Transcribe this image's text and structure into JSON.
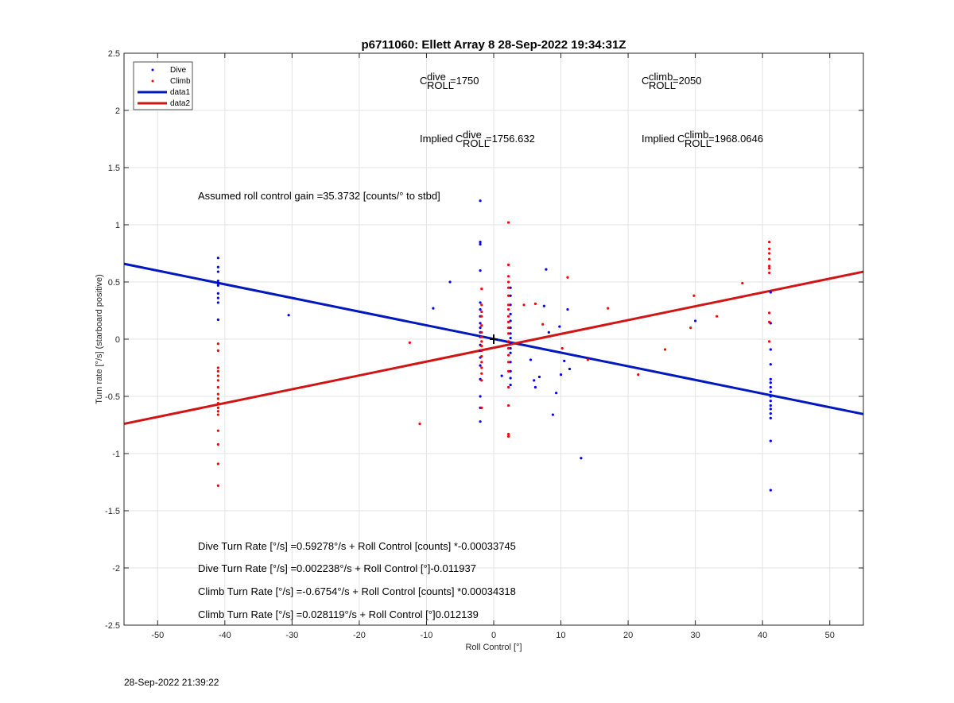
{
  "chart_data": {
    "type": "scatter",
    "title": "p6711060: Ellett Array 8 28-Sep-2022 19:34:31Z",
    "xlabel": "Roll Control [°]",
    "ylabel": "Turn rate [°/s] (starboard positive)",
    "xlim": [
      -55,
      55
    ],
    "ylim": [
      -2.5,
      2.5
    ],
    "x_ticks": [
      -50,
      -40,
      -30,
      -20,
      -10,
      0,
      10,
      20,
      30,
      40,
      50
    ],
    "y_ticks": [
      2.5,
      2,
      1.5,
      1,
      0.5,
      0,
      -0.5,
      -1,
      -1.5,
      -2,
      -2.5
    ],
    "grid": true,
    "legend": {
      "placement": "top-left",
      "entries": [
        {
          "label": "Dive",
          "kind": "marker",
          "color": "#0000ff"
        },
        {
          "label": "Climb",
          "kind": "marker",
          "color": "#ff0000"
        },
        {
          "label": "data1",
          "kind": "line",
          "color": "#0018bd"
        },
        {
          "label": "data2",
          "kind": "line",
          "color": "#d01515"
        }
      ]
    },
    "series": [
      {
        "name": "Dive",
        "kind": "points",
        "color": "#0000ff",
        "points": [
          [
            -41,
            0.71
          ],
          [
            -41,
            0.63
          ],
          [
            -41,
            0.59
          ],
          [
            -41,
            0.51
          ],
          [
            -41,
            0.49
          ],
          [
            -41,
            0.47
          ],
          [
            -41,
            0.4
          ],
          [
            -41,
            0.36
          ],
          [
            -41,
            0.32
          ],
          [
            -41,
            0.17
          ],
          [
            -30.5,
            0.21
          ],
          [
            -9,
            0.27
          ],
          [
            -6.5,
            0.5
          ],
          [
            -2,
            1.21
          ],
          [
            -2,
            0.85
          ],
          [
            -2,
            0.83
          ],
          [
            -2,
            0.6
          ],
          [
            -2,
            0.32
          ],
          [
            -2,
            0.26
          ],
          [
            -2,
            0.2
          ],
          [
            -2,
            0.14
          ],
          [
            -2,
            0.1
          ],
          [
            -2,
            0.06
          ],
          [
            -2,
            0.02
          ],
          [
            -2,
            -0.05
          ],
          [
            -2,
            -0.1
          ],
          [
            -2,
            -0.16
          ],
          [
            -2,
            -0.23
          ],
          [
            -2,
            -0.35
          ],
          [
            -2,
            -0.5
          ],
          [
            -2,
            -0.6
          ],
          [
            -2,
            -0.72
          ],
          [
            2.5,
            0.45
          ],
          [
            2.5,
            0.38
          ],
          [
            2.5,
            0.3
          ],
          [
            2.5,
            0.22
          ],
          [
            2.5,
            0.16
          ],
          [
            2.5,
            0.1
          ],
          [
            2.5,
            0.05
          ],
          [
            2.5,
            0.01
          ],
          [
            2.5,
            -0.03
          ],
          [
            2.5,
            -0.08
          ],
          [
            2.5,
            -0.12
          ],
          [
            2.5,
            -0.2
          ],
          [
            2.5,
            -0.28
          ],
          [
            2.5,
            -0.34
          ],
          [
            2.5,
            -0.4
          ],
          [
            1.2,
            -0.32
          ],
          [
            5.5,
            -0.18
          ],
          [
            6,
            -0.36
          ],
          [
            6.2,
            -0.42
          ],
          [
            6.8,
            -0.33
          ],
          [
            7.5,
            0.29
          ],
          [
            7.8,
            0.61
          ],
          [
            8.2,
            0.06
          ],
          [
            8.8,
            -0.66
          ],
          [
            9.3,
            -0.47
          ],
          [
            9.8,
            0.11
          ],
          [
            10,
            -0.31
          ],
          [
            10.5,
            -0.19
          ],
          [
            11,
            0.26
          ],
          [
            11.3,
            -0.26
          ],
          [
            13,
            -1.04
          ],
          [
            30,
            0.16
          ],
          [
            41.2,
            0.41
          ],
          [
            41.2,
            0.14
          ],
          [
            41.2,
            -0.09
          ],
          [
            41.2,
            -0.22
          ],
          [
            41.2,
            -0.35
          ],
          [
            41.2,
            -0.38
          ],
          [
            41.2,
            -0.42
          ],
          [
            41.2,
            -0.46
          ],
          [
            41.2,
            -0.5
          ],
          [
            41.2,
            -0.54
          ],
          [
            41.2,
            -0.58
          ],
          [
            41.2,
            -0.61
          ],
          [
            41.2,
            -0.65
          ],
          [
            41.2,
            -0.69
          ],
          [
            41.2,
            -0.89
          ],
          [
            41.2,
            -1.32
          ]
        ]
      },
      {
        "name": "Climb",
        "kind": "points",
        "color": "#ff0000",
        "points": [
          [
            -41,
            -0.04
          ],
          [
            -41,
            -0.1
          ],
          [
            -41,
            -0.25
          ],
          [
            -41,
            -0.28
          ],
          [
            -41,
            -0.32
          ],
          [
            -41,
            -0.36
          ],
          [
            -41,
            -0.42
          ],
          [
            -41,
            -0.48
          ],
          [
            -41,
            -0.52
          ],
          [
            -41,
            -0.56
          ],
          [
            -41,
            -0.6
          ],
          [
            -41,
            -0.63
          ],
          [
            -41,
            -0.66
          ],
          [
            -41,
            -0.8
          ],
          [
            -41,
            -0.92
          ],
          [
            -41,
            -1.09
          ],
          [
            -41,
            -1.28
          ],
          [
            -12.5,
            -0.03
          ],
          [
            -11,
            -0.74
          ],
          [
            -1.8,
            0.44
          ],
          [
            -1.8,
            0.3
          ],
          [
            -1.8,
            0.24
          ],
          [
            -1.8,
            0.2
          ],
          [
            -1.8,
            0.12
          ],
          [
            -1.8,
            0.06
          ],
          [
            -1.8,
            0.02
          ],
          [
            -1.8,
            -0.02
          ],
          [
            -1.8,
            -0.06
          ],
          [
            -1.8,
            -0.1
          ],
          [
            -1.8,
            -0.15
          ],
          [
            -1.8,
            -0.2
          ],
          [
            -1.8,
            -0.25
          ],
          [
            -1.8,
            -0.3
          ],
          [
            -1.8,
            -0.36
          ],
          [
            -1.8,
            -0.6
          ],
          [
            2.2,
            1.02
          ],
          [
            2.2,
            0.65
          ],
          [
            2.2,
            0.55
          ],
          [
            2.2,
            0.5
          ],
          [
            2.2,
            0.45
          ],
          [
            2.2,
            0.38
          ],
          [
            2.2,
            0.3
          ],
          [
            2.2,
            0.26
          ],
          [
            2.2,
            0.2
          ],
          [
            2.2,
            0.15
          ],
          [
            2.2,
            0.1
          ],
          [
            2.2,
            0.05
          ],
          [
            2.2,
            -0.02
          ],
          [
            2.2,
            -0.08
          ],
          [
            2.2,
            -0.14
          ],
          [
            2.2,
            -0.2
          ],
          [
            2.2,
            -0.28
          ],
          [
            2.2,
            -0.42
          ],
          [
            2.2,
            -0.58
          ],
          [
            2.2,
            -0.83
          ],
          [
            2.2,
            -0.85
          ],
          [
            4.5,
            0.3
          ],
          [
            6.2,
            0.31
          ],
          [
            7.3,
            0.13
          ],
          [
            10.2,
            -0.08
          ],
          [
            11,
            0.54
          ],
          [
            14,
            -0.18
          ],
          [
            17,
            0.27
          ],
          [
            21.5,
            -0.31
          ],
          [
            25.5,
            -0.09
          ],
          [
            29.3,
            0.1
          ],
          [
            29.8,
            0.38
          ],
          [
            33.2,
            0.2
          ],
          [
            37,
            0.49
          ],
          [
            41,
            0.85
          ],
          [
            41,
            0.79
          ],
          [
            41,
            0.75
          ],
          [
            41,
            0.7
          ],
          [
            41,
            0.64
          ],
          [
            41,
            0.62
          ],
          [
            41,
            0.58
          ],
          [
            41,
            0.23
          ],
          [
            41,
            0.15
          ],
          [
            41,
            -0.02
          ]
        ]
      },
      {
        "name": "data1",
        "kind": "line",
        "color": "#0018bd",
        "x": [
          -55,
          55
        ],
        "y": [
          0.659,
          -0.655
        ]
      },
      {
        "name": "data2",
        "kind": "line",
        "color": "#d01515",
        "x": [
          -55,
          55
        ],
        "y": [
          -0.74,
          0.59
        ]
      }
    ],
    "annotations": {
      "c_dive_value": "=1750",
      "c_climb_value": "=2050",
      "implied_prefix": "Implied ",
      "implied_dive_value": "=1756.632",
      "implied_climb_value": "=1968.0646",
      "c_letter": "C",
      "roll_sub": "ROLL",
      "dive_sup": "dive",
      "climb_sup": "climb",
      "gain_text": "Assumed roll control gain =35.3732 [counts/° to stbd]",
      "fit_lines": [
        "Dive Turn Rate [°/s] =0.59278°/s + Roll Control [counts] *-0.00033745",
        "Dive Turn Rate [°/s] =0.002238°/s + Roll Control [°]-0.011937",
        "Climb Turn Rate [°/s] =-0.6754°/s + Roll Control [counts] *0.00034318",
        "Climb Turn Rate [°/s] =0.028119°/s + Roll Control [°]0.012139"
      ]
    }
  },
  "footer": {
    "timestamp": "28-Sep-2022 21:39:22"
  }
}
